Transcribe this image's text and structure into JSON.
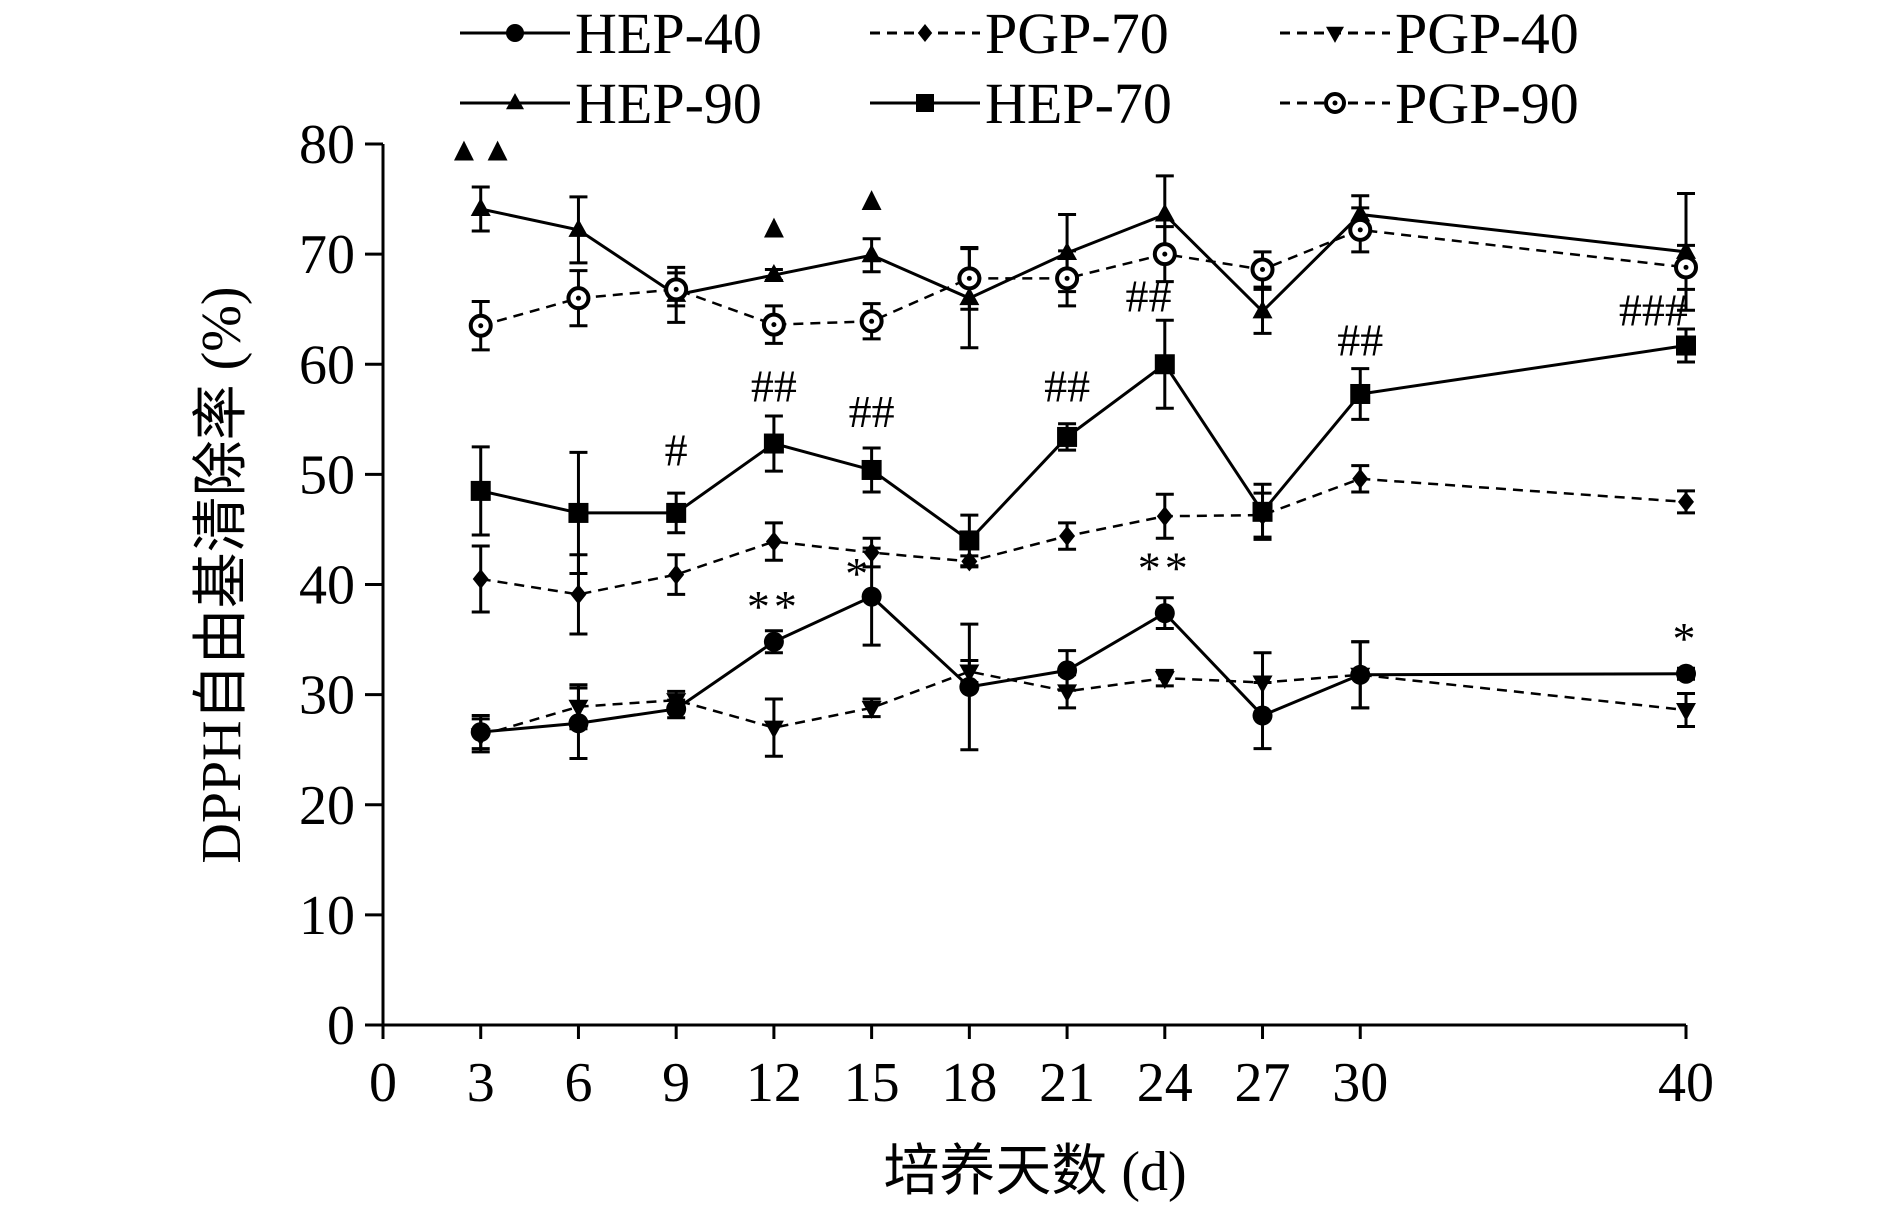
{
  "chart_data": {
    "type": "line",
    "title": "",
    "xlabel": "培养天数 (d)",
    "ylabel": "DPPH自由基清除率 (%)",
    "xlim": [
      0,
      40
    ],
    "ylim": [
      0,
      80
    ],
    "x_ticks": [
      0,
      3,
      6,
      9,
      12,
      15,
      18,
      21,
      24,
      27,
      30,
      40
    ],
    "y_ticks": [
      0,
      10,
      20,
      30,
      40,
      50,
      60,
      70,
      80
    ],
    "grid": false,
    "legend_position": "top",
    "x": [
      3,
      6,
      9,
      12,
      15,
      18,
      21,
      24,
      27,
      30,
      40
    ],
    "series": [
      {
        "name": "HEP-40",
        "style": "solid",
        "marker": "circle",
        "values": [
          26.6,
          27.4,
          28.7,
          34.8,
          38.9,
          30.7,
          32.2,
          37.4,
          28.1,
          31.8,
          31.9
        ],
        "errors": [
          1.5,
          3.2,
          0.8,
          1.0,
          4.4,
          5.7,
          1.8,
          1.4,
          3.0,
          3.0,
          0.5
        ]
      },
      {
        "name": "HEP-70",
        "style": "solid",
        "marker": "square",
        "values": [
          48.5,
          46.5,
          46.5,
          52.8,
          50.4,
          44.0,
          53.4,
          60.0,
          46.6,
          57.3,
          61.7
        ],
        "errors": [
          4.0,
          5.5,
          1.8,
          2.5,
          2.0,
          2.3,
          1.2,
          4.0,
          2.5,
          2.3,
          1.5
        ]
      },
      {
        "name": "HEP-90",
        "style": "solid",
        "marker": "triangle-up",
        "values": [
          74.1,
          72.2,
          66.3,
          68.1,
          69.9,
          66.0,
          70.1,
          73.6,
          64.8,
          73.6,
          70.2
        ],
        "errors": [
          2.0,
          3.0,
          2.5,
          0.5,
          1.5,
          4.5,
          3.5,
          3.5,
          2.0,
          1.7,
          5.3
        ]
      },
      {
        "name": "PGP-40",
        "style": "dashed",
        "marker": "triangle-down",
        "values": [
          26.3,
          28.9,
          29.5,
          27.0,
          28.8,
          32.1,
          30.3,
          31.5,
          31.1,
          31.8,
          28.6
        ],
        "errors": [
          1.5,
          2.0,
          0.8,
          2.6,
          0.8,
          1.0,
          1.5,
          0.7,
          2.7,
          3.0,
          1.5
        ]
      },
      {
        "name": "PGP-70",
        "style": "dashed",
        "marker": "diamond",
        "values": [
          40.5,
          39.1,
          40.9,
          43.9,
          42.9,
          42.1,
          44.4,
          46.2,
          46.3,
          49.6,
          47.5
        ],
        "errors": [
          3.0,
          3.6,
          1.8,
          1.7,
          1.3,
          0.5,
          1.2,
          2.0,
          2.0,
          1.2,
          1.0
        ]
      },
      {
        "name": "PGP-90",
        "style": "dashed",
        "marker": "open-circle",
        "values": [
          63.5,
          66.0,
          66.8,
          63.6,
          63.9,
          67.8,
          67.8,
          70.0,
          68.6,
          72.2,
          68.8
        ],
        "errors": [
          2.2,
          2.5,
          1.5,
          1.7,
          1.6,
          2.8,
          2.5,
          2.5,
          1.6,
          2.0,
          2.0
        ]
      }
    ],
    "annotations": [
      {
        "text": "▲▲",
        "x": 3,
        "y": 78.5
      },
      {
        "text": "▲",
        "x": 12,
        "y": 71.5
      },
      {
        "text": "▲",
        "x": 15,
        "y": 74
      },
      {
        "text": "#",
        "x": 9,
        "y": 50.8
      },
      {
        "text": "##",
        "x": 12,
        "y": 56.6
      },
      {
        "text": "##",
        "x": 15,
        "y": 54.3
      },
      {
        "text": "##",
        "x": 21,
        "y": 56.6
      },
      {
        "text": "##",
        "x": 23.5,
        "y": 64.8
      },
      {
        "text": "##",
        "x": 30,
        "y": 60.8
      },
      {
        "text": "###",
        "x": 39,
        "y": 63.5
      },
      {
        "text": "**",
        "x": 12,
        "y": 36.6
      },
      {
        "text": "*",
        "x": 14.6,
        "y": 39.6
      },
      {
        "text": "**",
        "x": 24,
        "y": 40.1
      },
      {
        "text": "*",
        "x": 40,
        "y": 33.7
      }
    ]
  }
}
